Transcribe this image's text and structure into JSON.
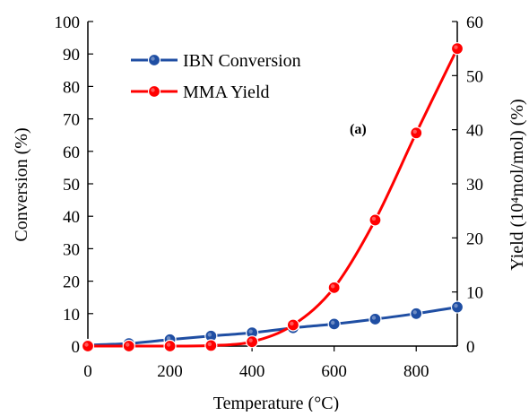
{
  "chart_data": {
    "type": "line",
    "xlabel": "Temperature (°C)",
    "ylabel_left": "Conversion (%)",
    "ylabel_right": "Yield  (10⁴mol/mol) (%)",
    "annotation": "(a)",
    "xlim": [
      0,
      900
    ],
    "ylim_left": [
      0,
      100
    ],
    "ylim_right": [
      0,
      60
    ],
    "x_ticks": [
      0,
      200,
      400,
      600,
      800
    ],
    "y_left_ticks": [
      0,
      10,
      20,
      30,
      40,
      50,
      60,
      70,
      80,
      90,
      100
    ],
    "y_right_ticks": [
      0,
      10,
      20,
      30,
      40,
      50,
      60
    ],
    "legend_position": "top-left",
    "grid": false,
    "series": [
      {
        "name": "IBN Conversion",
        "axis": "left",
        "color": "#1f4ea3",
        "x": [
          0,
          100,
          200,
          300,
          400,
          500,
          600,
          700,
          800,
          900
        ],
        "y": [
          0.3,
          0.8,
          2.0,
          3.1,
          4.1,
          5.6,
          6.8,
          8.3,
          10.0,
          12.0
        ]
      },
      {
        "name": "MMA Yield",
        "axis": "right",
        "color": "#ff0000",
        "x": [
          0,
          100,
          200,
          300,
          400,
          500,
          600,
          700,
          800,
          900
        ],
        "y": [
          0,
          0,
          0,
          0.1,
          0.8,
          3.9,
          10.8,
          23.3,
          39.4,
          55.0
        ]
      }
    ]
  }
}
